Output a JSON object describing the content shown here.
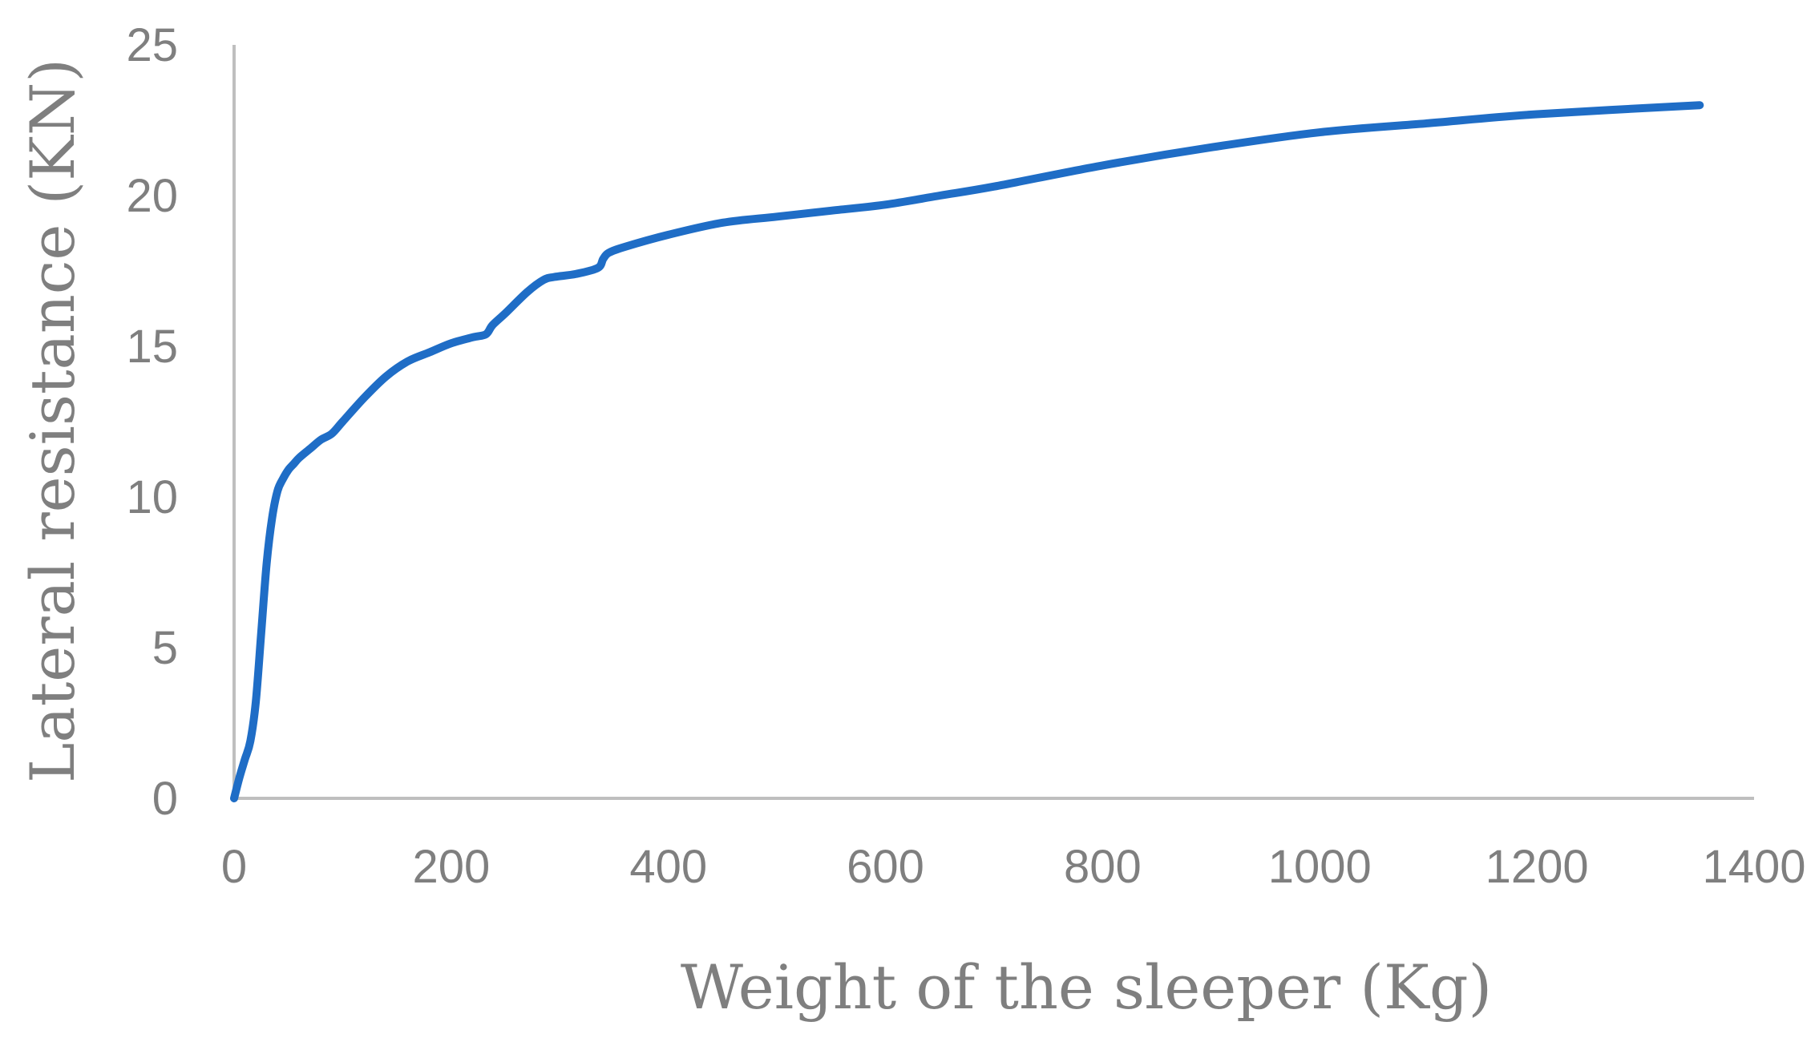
{
  "chart_data": {
    "type": "line",
    "title": "",
    "xlabel": "Weight of the sleeper (Kg)",
    "ylabel": "Lateral resistance (KN)",
    "xlim": [
      0,
      1400
    ],
    "ylim": [
      0,
      25
    ],
    "x_ticks": [
      "0",
      "200",
      "400",
      "600",
      "800",
      "1000",
      "1200",
      "1400"
    ],
    "y_ticks": [
      "0",
      "5",
      "10",
      "15",
      "20",
      "25"
    ],
    "grid": false,
    "legend": "none",
    "series": [
      {
        "color": "#1f6dc6",
        "x": [
          0,
          5,
          10,
          15,
          20,
          25,
          30,
          35,
          40,
          45,
          50,
          55,
          60,
          70,
          80,
          90,
          100,
          120,
          140,
          160,
          180,
          200,
          220,
          232,
          238,
          250,
          270,
          285,
          295,
          315,
          335,
          340,
          345,
          360,
          400,
          450,
          500,
          550,
          600,
          650,
          700,
          800,
          900,
          1000,
          1100,
          1200,
          1350
        ],
        "y": [
          0,
          0.7,
          1.3,
          1.9,
          3.2,
          5.5,
          7.8,
          9.3,
          10.2,
          10.6,
          10.9,
          11.1,
          11.3,
          11.6,
          11.9,
          12.1,
          12.5,
          13.3,
          14.0,
          14.5,
          14.8,
          15.1,
          15.3,
          15.4,
          15.7,
          16.1,
          16.8,
          17.2,
          17.3,
          17.4,
          17.6,
          17.9,
          18.1,
          18.3,
          18.7,
          19.1,
          19.3,
          19.5,
          19.7,
          20.0,
          20.3,
          21.0,
          21.6,
          22.1,
          22.4,
          22.7,
          23.0
        ]
      }
    ]
  }
}
